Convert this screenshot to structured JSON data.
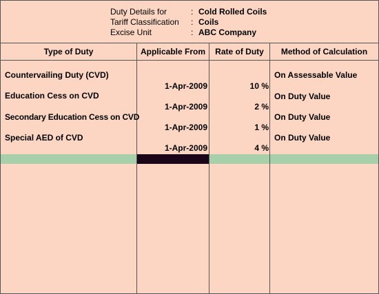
{
  "header": {
    "rows": [
      {
        "label": "Duty Details for",
        "value": "Cold Rolled Coils"
      },
      {
        "label": "Tariff Classification",
        "value": "Coils"
      },
      {
        "label": "Excise Unit",
        "value": "ABC Company"
      }
    ],
    "separator": ":"
  },
  "table": {
    "columns": [
      "Type of Duty",
      "Applicable From",
      "Rate of Duty",
      "Method of Calculation"
    ],
    "rows": [
      {
        "type": "Countervailing Duty (CVD)",
        "applicable_from": "1-Apr-2009",
        "rate": "10 %",
        "method": "On Assessable Value"
      },
      {
        "type": "Education Cess on CVD",
        "applicable_from": "1-Apr-2009",
        "rate": "2 %",
        "method": "On Duty Value"
      },
      {
        "type": "Secondary Education Cess on CVD",
        "applicable_from": "1-Apr-2009",
        "rate": "1 %",
        "method": "On Duty Value"
      },
      {
        "type": "Special AED of CVD",
        "applicable_from": "1-Apr-2009",
        "rate": "4 %",
        "method": "On Duty Value"
      }
    ]
  },
  "colors": {
    "background": "#fcd6c2",
    "highlight_row": "#a6cfaa",
    "cursor": "#1a0618"
  }
}
